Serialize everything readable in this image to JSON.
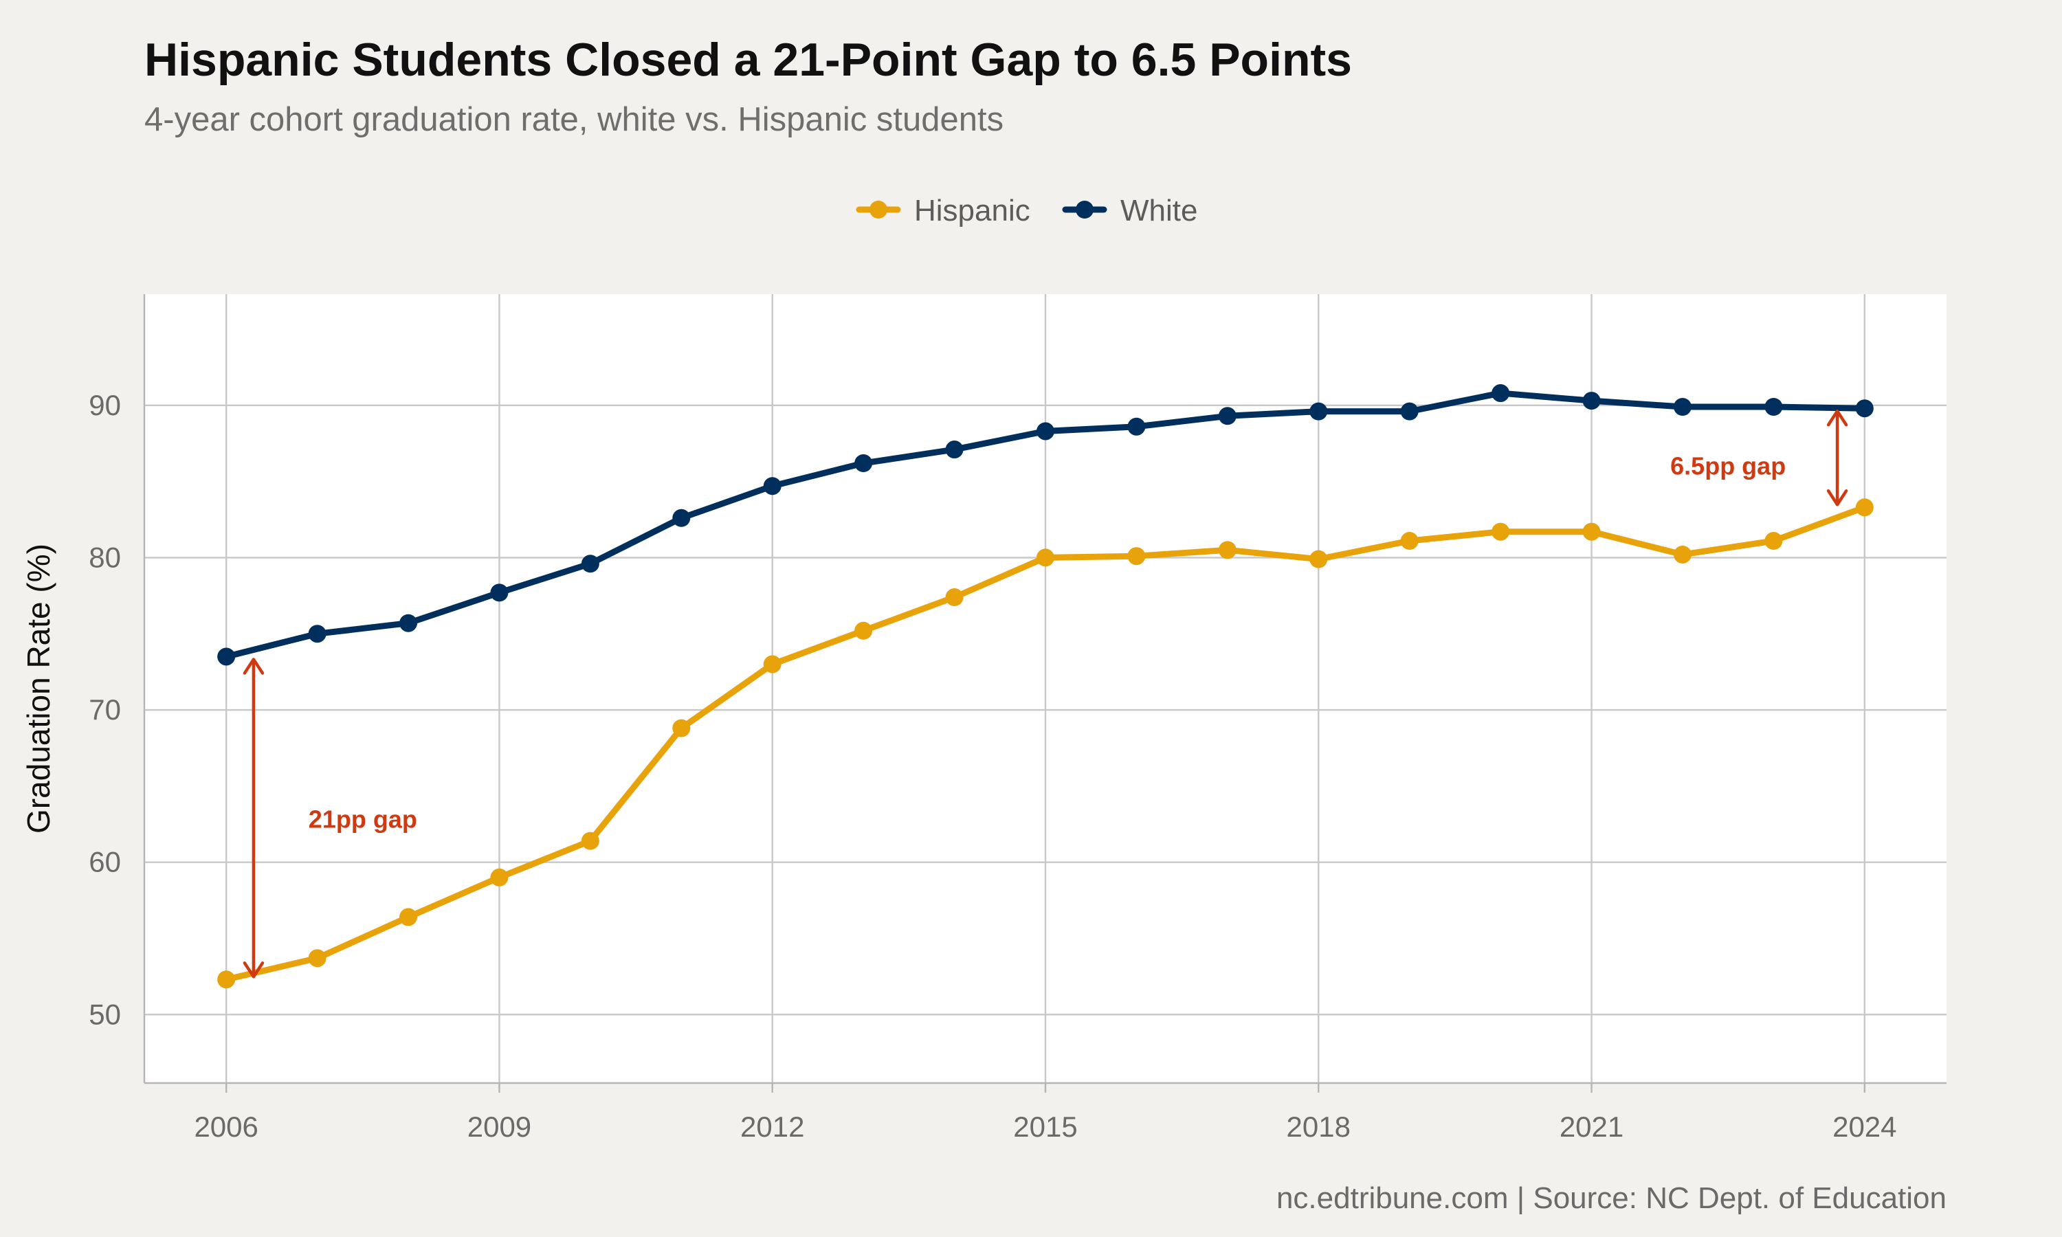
{
  "header": {
    "title": "Hispanic Students Closed a 21-Point Gap to 6.5 Points",
    "subtitle": "4-year cohort graduation rate, white vs. Hispanic students"
  },
  "legend": {
    "position": "top-center",
    "items": [
      {
        "label": "Hispanic",
        "color": "#E8A20A"
      },
      {
        "label": "White",
        "color": "#002F5E"
      }
    ]
  },
  "caption": "nc.edtribune.com | Source: NC Dept. of Education",
  "colors": {
    "background": "#F3F1ED",
    "panel": "#FFFFFF",
    "grid": "#C8C8C8",
    "annotation": "#D03A10",
    "hispanic": "#E8A20A",
    "white": "#002F5E"
  },
  "chart_data": {
    "type": "line",
    "title": "Hispanic Students Closed a 21-Point Gap to 6.5 Points",
    "subtitle": "4-year cohort graduation rate, white vs. Hispanic students",
    "xlabel": "",
    "ylabel": "Graduation Rate (%)",
    "x": [
      2006,
      2007,
      2008,
      2009,
      2010,
      2011,
      2012,
      2013,
      2014,
      2015,
      2016,
      2017,
      2018,
      2019,
      2020,
      2021,
      2022,
      2023,
      2024
    ],
    "series": [
      {
        "name": "Hispanic",
        "color": "#E8A20A",
        "values": [
          52.3,
          53.7,
          56.4,
          59.0,
          61.4,
          68.8,
          73.0,
          75.2,
          77.4,
          80.0,
          80.1,
          80.5,
          79.9,
          81.1,
          81.7,
          81.7,
          80.2,
          81.1,
          83.3
        ]
      },
      {
        "name": "White",
        "color": "#002F5E",
        "values": [
          73.5,
          75.0,
          75.7,
          77.7,
          79.6,
          82.6,
          84.7,
          86.2,
          87.1,
          88.3,
          88.6,
          89.3,
          89.6,
          89.6,
          90.8,
          90.3,
          89.9,
          89.9,
          89.8
        ]
      }
    ],
    "xlim": [
      2005.1,
      2024.9
    ],
    "ylim": [
      45.5,
      97.3
    ],
    "x_ticks": [
      2006,
      2009,
      2012,
      2015,
      2018,
      2021,
      2024
    ],
    "y_ticks": [
      50,
      60,
      70,
      80,
      90
    ],
    "grid": true,
    "annotations": [
      {
        "text": "21pp gap",
        "arrow_x": 2006.3,
        "from": 52.3,
        "to": 73.5,
        "label_x": 2007.5,
        "label_y": 62.8
      },
      {
        "text": "6.5pp gap",
        "arrow_x": 2023.7,
        "from": 83.3,
        "to": 89.8,
        "label_x": 2022.5,
        "label_y": 86.0
      }
    ]
  }
}
